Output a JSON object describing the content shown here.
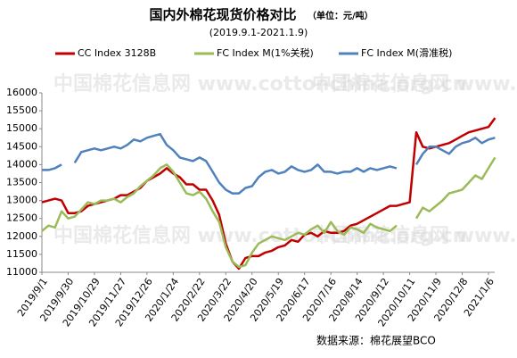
{
  "chart_data": {
    "type": "line",
    "title": "国内外棉花现货价格对比",
    "unit_note": "（单位：元/吨）",
    "subtitle": "(2019.9.1-2021.1.9)",
    "source": "数据来源：棉花展望BCO",
    "watermark": "中国棉花信息网 www.cottonchina.org.cn",
    "categories": [
      "2019/9/1",
      null,
      null,
      null,
      "2019/9/30",
      null,
      null,
      null,
      "2019/10/29",
      null,
      null,
      null,
      "2019/11/27",
      null,
      null,
      null,
      "2019/12/26",
      null,
      null,
      null,
      "2020/1/24",
      null,
      null,
      null,
      "2020/2/22",
      null,
      null,
      null,
      "2020/3/22",
      null,
      null,
      null,
      "2020/4/20",
      null,
      null,
      null,
      "2020/5/19",
      null,
      null,
      null,
      "2020/6/17",
      null,
      null,
      null,
      "2020/7/16",
      null,
      null,
      null,
      "2020/8/14",
      null,
      null,
      null,
      "2020/9/12",
      null,
      null,
      null,
      "2020/10/11",
      null,
      null,
      null,
      "2020/11/9",
      null,
      null,
      null,
      "2020/12/8",
      null,
      null,
      null,
      "2021/1/6",
      null
    ],
    "series": [
      {
        "name": "CC Index 3128B",
        "color": "#c00000",
        "values": [
          12950,
          13000,
          13050,
          13000,
          12650,
          12650,
          12700,
          12850,
          12900,
          12950,
          13000,
          13050,
          13150,
          13150,
          13250,
          13350,
          13550,
          13650,
          13750,
          13900,
          13750,
          13650,
          13450,
          13450,
          13300,
          13300,
          13000,
          12600,
          11800,
          11300,
          11100,
          11400,
          11450,
          11450,
          11550,
          11600,
          11700,
          11750,
          11900,
          11850,
          12050,
          12100,
          12000,
          12150,
          12100,
          12100,
          12150,
          12300,
          12350,
          12450,
          12550,
          12650,
          12750,
          12850,
          12850,
          12900,
          12950,
          14900,
          14500,
          14450,
          14500,
          14550,
          14600,
          14700,
          14800,
          14900,
          14950,
          15000,
          15050,
          15300
        ]
      },
      {
        "name": "FC Index M(1%关税)",
        "color": "#9bbb59",
        "values": [
          12150,
          12300,
          12250,
          12700,
          12500,
          12550,
          12750,
          12950,
          12900,
          13000,
          13000,
          13050,
          12950,
          13100,
          13200,
          13400,
          13550,
          13700,
          13900,
          14000,
          13800,
          13500,
          13200,
          13150,
          13250,
          13050,
          12700,
          12400,
          11700,
          11300,
          11150,
          11200,
          11550,
          11800,
          11900,
          12000,
          11950,
          11900,
          12000,
          12100,
          12050,
          12200,
          12300,
          12100,
          12400,
          12150,
          12050,
          12250,
          12200,
          12100,
          12350,
          12250,
          12200,
          12150,
          12300,
          null,
          null,
          12500,
          12800,
          12700,
          12850,
          13000,
          13200,
          13250,
          13300,
          13500,
          13700,
          13600,
          13900,
          14200
        ]
      },
      {
        "name": "FC Index M(滑准税)",
        "color": "#4f81bd",
        "values": [
          13850,
          13850,
          13900,
          14000,
          null,
          14050,
          14350,
          14400,
          14450,
          14400,
          14450,
          14500,
          14450,
          14550,
          14700,
          14650,
          14750,
          14800,
          14850,
          14550,
          14400,
          14200,
          14150,
          14100,
          14200,
          14100,
          13800,
          13500,
          13300,
          13200,
          13200,
          13350,
          13400,
          13650,
          13800,
          13850,
          13750,
          13800,
          13950,
          13850,
          13800,
          13850,
          14000,
          13800,
          13800,
          13750,
          13800,
          13800,
          13900,
          13800,
          13900,
          13850,
          13900,
          13950,
          13900,
          null,
          null,
          14000,
          14300,
          14500,
          14500,
          14400,
          14300,
          14500,
          14600,
          14650,
          14750,
          14600,
          14700,
          14750
        ]
      }
    ],
    "ylim": [
      11000,
      16000
    ],
    "yticks": [
      11000,
      11500,
      12000,
      12500,
      13000,
      13500,
      14000,
      14500,
      15000,
      15500,
      16000
    ],
    "grid": false
  }
}
